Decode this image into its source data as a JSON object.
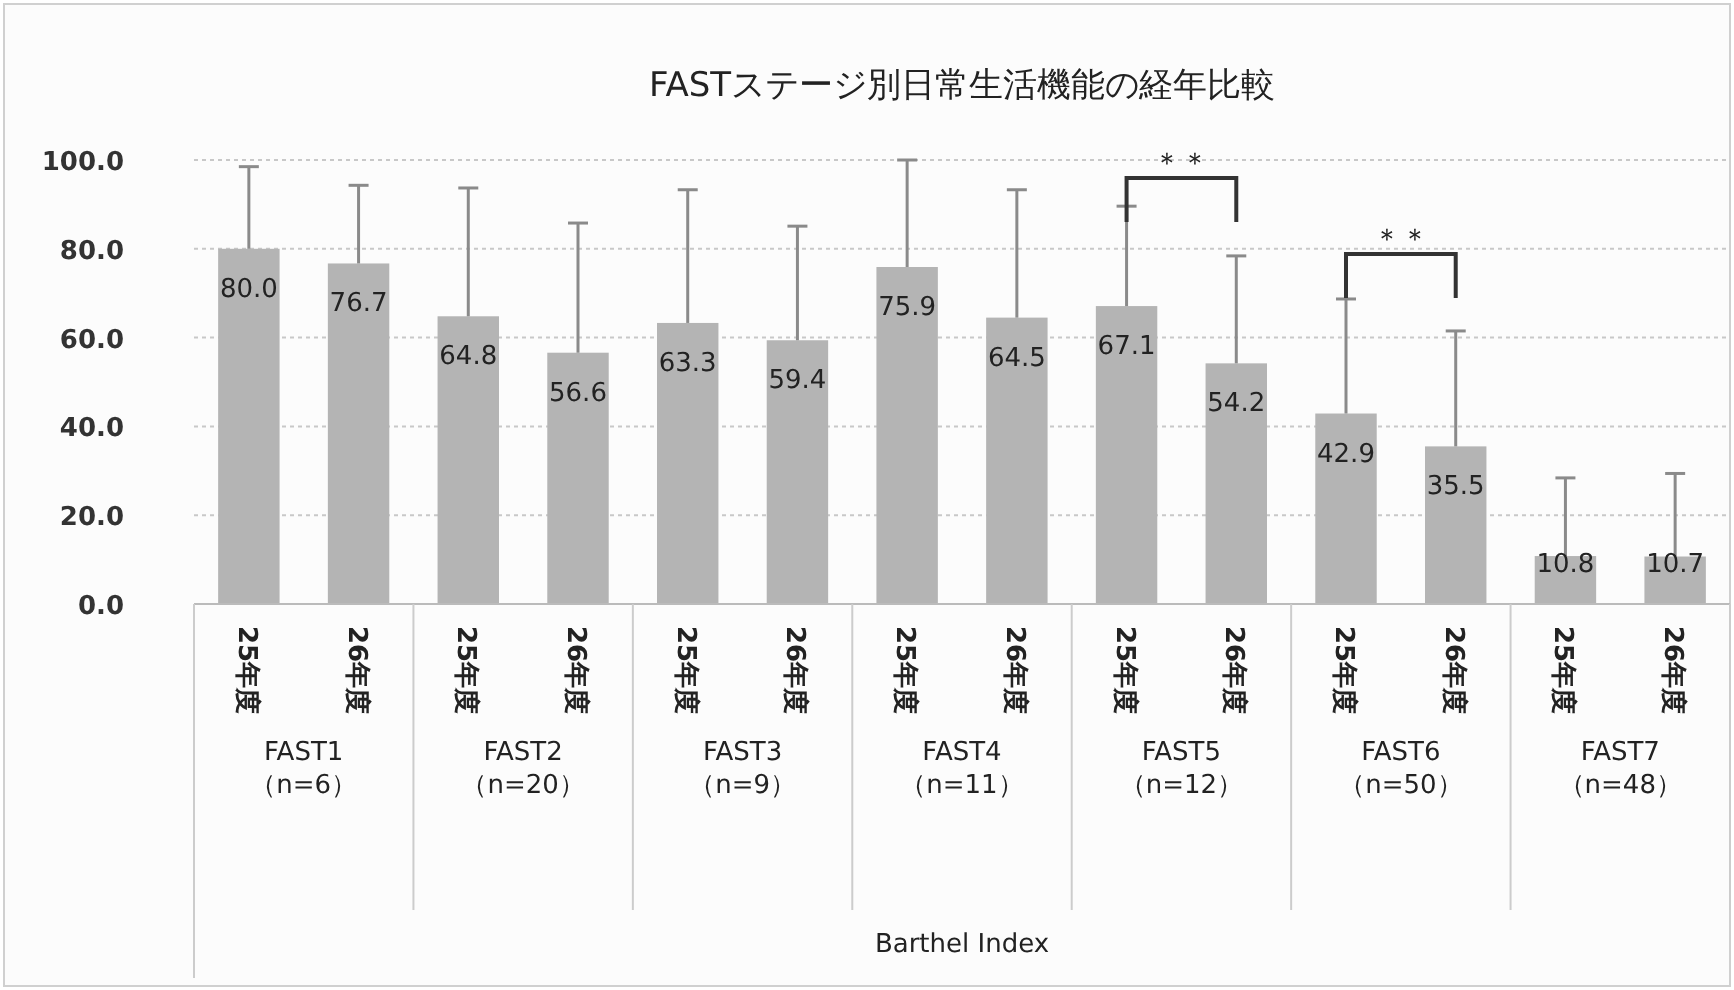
{
  "chart_data": {
    "type": "bar",
    "title": "FASTステージ別日常生活機能の経年比較",
    "categories": [
      "FAST1\n（n=6）",
      "FAST2\n（n=20）",
      "FAST3\n（n=9）",
      "FAST4\n（n=11）",
      "FAST5\n（n=12）",
      "FAST6\n（n=50）",
      "FAST7\n（n=48）"
    ],
    "series": [
      {
        "name": "25年度",
        "color": "#b4b4b4",
        "value_labels": [
          "80.0",
          "64.8",
          "63.3",
          "75.9",
          "67.1",
          "42.9",
          "10.8"
        ],
        "values": [
          80.0,
          64.8,
          63.3,
          75.9,
          67.1,
          42.9,
          10.8
        ],
        "errors": [
          [
            80.0,
            98.5
          ],
          [
            64.8,
            93.7
          ],
          [
            63.3,
            93.3
          ],
          [
            75.9,
            100
          ],
          [
            67.1,
            89.6
          ],
          [
            42.9,
            68.7
          ],
          [
            10.8,
            28.4
          ]
        ]
      },
      {
        "name": "26年度",
        "color": "#b4b4b4",
        "value_labels": [
          "76.7",
          "56.6",
          "59.4",
          "64.5",
          "54.2",
          "35.5",
          "10.7"
        ],
        "values": [
          76.7,
          56.6,
          59.4,
          64.5,
          54.2,
          35.5,
          10.7
        ],
        "errors": [
          [
            76.7,
            94.3
          ],
          [
            56.6,
            85.8
          ],
          [
            59.4,
            85.1
          ],
          [
            64.5,
            93.3
          ],
          [
            54.2,
            78.4
          ],
          [
            35.5,
            61.5
          ],
          [
            10.7,
            29.4
          ]
        ]
      }
    ],
    "ylim": [
      0,
      100
    ],
    "yticks": [
      {
        "value": 0,
        "label": "0.0"
      },
      {
        "value": 20,
        "label": "20.0"
      },
      {
        "value": 40,
        "label": "40.0"
      },
      {
        "value": 60,
        "label": "60.0"
      },
      {
        "value": 80,
        "label": "80.0"
      },
      {
        "value": 100,
        "label": "100.0"
      }
    ],
    "grid": "y",
    "legend": false,
    "annotations": [
      "＊＊",
      "＊＊",
      "Barthel Index"
    ]
  }
}
